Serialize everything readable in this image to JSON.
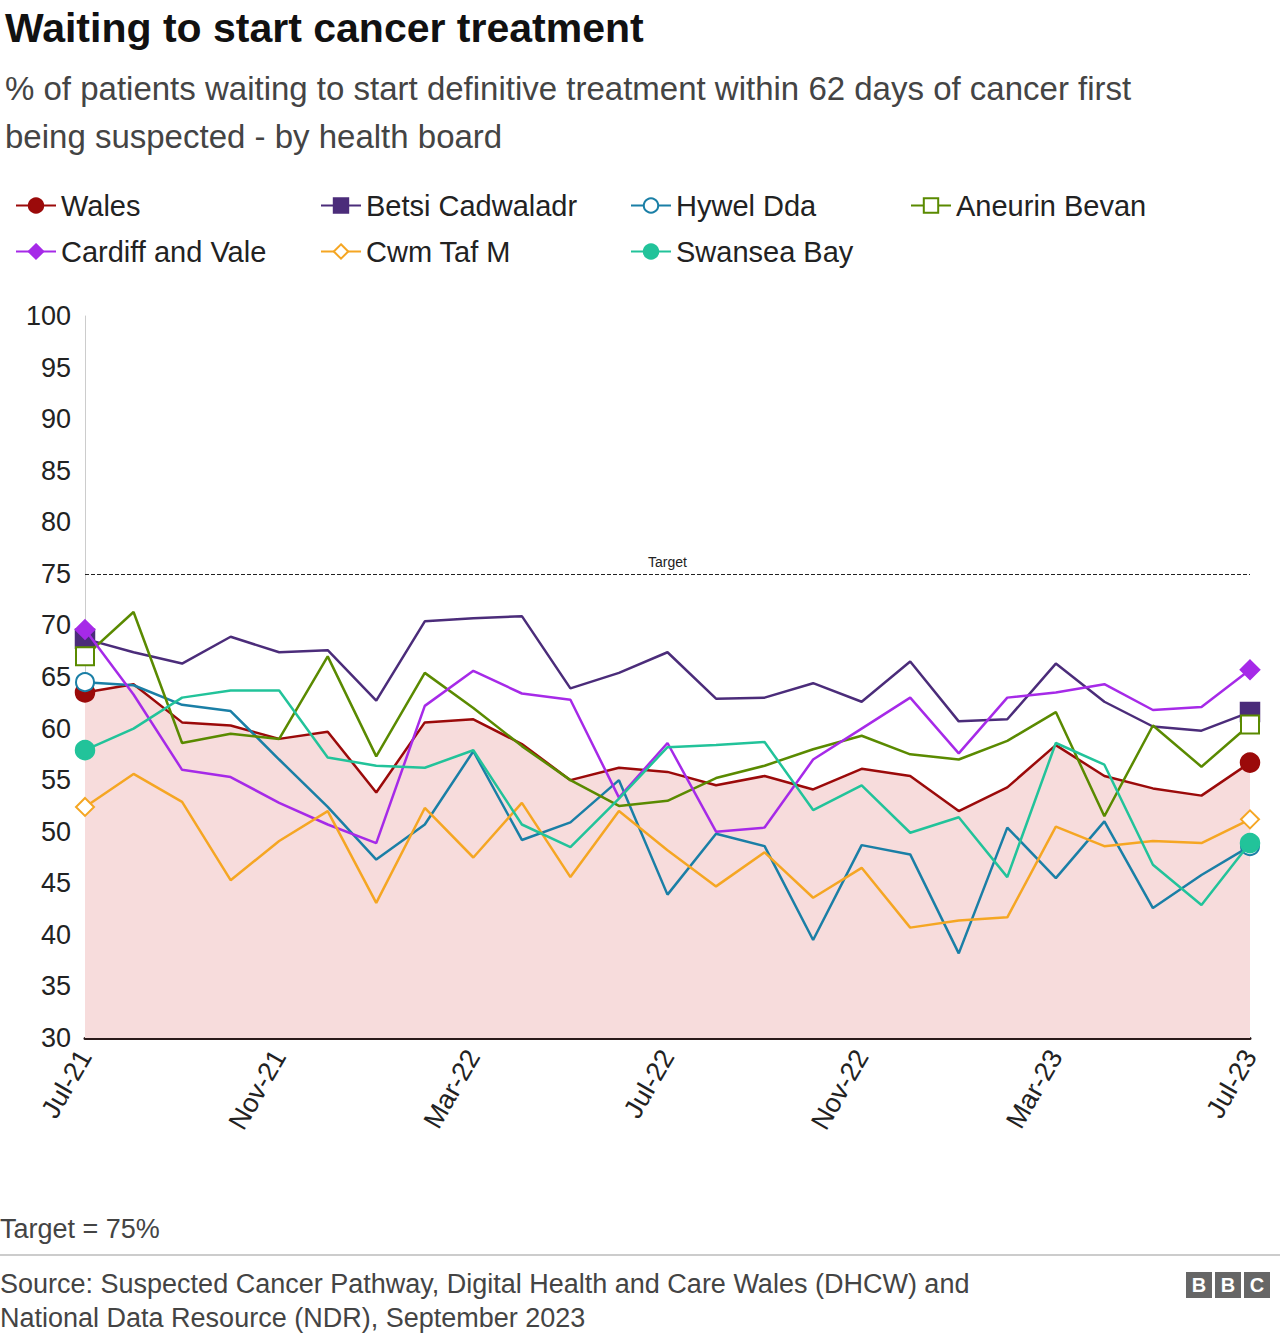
{
  "chart_data": {
    "type": "line",
    "title": "Waiting to start cancer treatment",
    "subtitle": "% of patients waiting to start definitive treatment within 62 days of cancer first being suspected - by health board",
    "footnote": "Target = 75%",
    "source": "Source: Suspected Cancer Pathway, Digital Health and Care Wales (DHCW) and National Data Resource (NDR), September 2023",
    "logo": "BBC",
    "categories": [
      "Jul-21",
      null,
      null,
      null,
      "Nov-21",
      null,
      null,
      null,
      "Mar-22",
      null,
      null,
      null,
      "Jul-22",
      null,
      null,
      null,
      "Nov-22",
      null,
      null,
      null,
      "Mar-23",
      null,
      null,
      null,
      "Jul-23"
    ],
    "ylim": [
      30,
      100
    ],
    "yticks": [
      30,
      35,
      40,
      45,
      50,
      55,
      60,
      65,
      70,
      75,
      80,
      85,
      90,
      95,
      100
    ],
    "grid": false,
    "annotations": [
      {
        "y": 75,
        "label": "Target",
        "line_style": "dashed"
      }
    ],
    "series": [
      {
        "name": "Wales",
        "color": "#9b0a0a",
        "type": "area",
        "marker": "circle",
        "values": [
          63.5,
          64.3,
          60.6,
          60.3,
          59.0,
          59.7,
          53.8,
          60.6,
          60.9,
          58.5,
          55.0,
          56.2,
          55.8,
          54.5,
          55.4,
          54.1,
          56.1,
          55.4,
          52.0,
          54.3,
          58.4,
          55.4,
          54.2,
          53.5,
          56.7
        ]
      },
      {
        "name": "Betsi Cadwaladr",
        "color": "#4b2c7a",
        "type": "line",
        "marker": "square",
        "values": [
          68.7,
          67.4,
          66.3,
          68.9,
          67.4,
          67.6,
          62.7,
          70.4,
          70.7,
          70.9,
          63.9,
          65.4,
          67.4,
          62.9,
          63.0,
          64.4,
          62.6,
          66.5,
          60.7,
          60.9,
          66.3,
          62.6,
          60.2,
          59.8,
          61.6
        ]
      },
      {
        "name": "Hywel Dda",
        "color": "#1a7fa6",
        "type": "line",
        "marker": "empty_circle",
        "values": [
          64.5,
          64.2,
          62.3,
          61.7,
          57.0,
          52.4,
          47.3,
          50.7,
          57.8,
          49.2,
          50.9,
          55.0,
          43.9,
          49.8,
          48.6,
          39.5,
          48.7,
          47.8,
          38.2,
          50.4,
          45.5,
          51.0,
          42.6,
          45.8,
          48.6
        ]
      },
      {
        "name": "Aneurin Bevan",
        "color": "#5a8a00",
        "type": "line",
        "marker": "empty_square",
        "values": [
          67.0,
          71.3,
          58.6,
          59.5,
          59.0,
          67.0,
          57.3,
          65.4,
          62.0,
          58.3,
          55.0,
          52.5,
          53.0,
          55.2,
          56.4,
          58.0,
          59.3,
          57.5,
          57.0,
          58.8,
          61.6,
          51.5,
          60.3,
          56.3,
          60.4
        ]
      },
      {
        "name": "Cardiff and Vale",
        "color": "#a62ae8",
        "type": "line",
        "marker": "diamond",
        "values": [
          69.6,
          63.3,
          56.0,
          55.3,
          52.8,
          50.7,
          48.9,
          62.2,
          65.6,
          63.4,
          62.8,
          53.3,
          58.6,
          50.0,
          50.4,
          57.0,
          60.0,
          63.0,
          57.6,
          63.0,
          63.5,
          64.3,
          61.8,
          62.1,
          65.7
        ]
      },
      {
        "name": "Cwm Taf M",
        "color": "#f5a623",
        "type": "line",
        "marker": "empty_diamond",
        "values": [
          52.4,
          55.6,
          52.9,
          45.3,
          49.1,
          52.0,
          43.1,
          52.3,
          47.5,
          52.8,
          45.6,
          52.0,
          48.2,
          44.7,
          48.0,
          43.6,
          46.5,
          40.7,
          41.4,
          41.7,
          50.5,
          48.6,
          49.1,
          48.9,
          51.2
        ]
      },
      {
        "name": "Swansea Bay",
        "color": "#22c39a",
        "type": "line",
        "marker": "circle",
        "values": [
          57.9,
          60.0,
          63.0,
          63.7,
          63.7,
          57.2,
          56.4,
          56.2,
          57.9,
          50.7,
          48.5,
          53.2,
          58.2,
          58.4,
          58.7,
          52.1,
          54.5,
          49.9,
          51.4,
          45.6,
          58.6,
          56.5,
          46.8,
          42.9,
          48.9
        ]
      }
    ]
  }
}
